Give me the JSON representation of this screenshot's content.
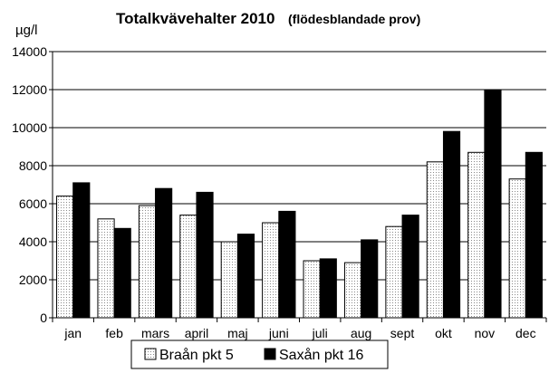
{
  "chart_data": {
    "type": "bar",
    "title": "Totalkvävehalter 2010",
    "subtitle": "(flödesblandade prov)",
    "ylabel": "µg/l",
    "xlabel": "",
    "ylim": [
      0,
      14000
    ],
    "yticks": [
      0,
      2000,
      4000,
      6000,
      8000,
      10000,
      12000,
      14000
    ],
    "grid": "horizontal",
    "legend_position": "bottom",
    "categories": [
      "jan",
      "feb",
      "mars",
      "april",
      "maj",
      "juni",
      "juli",
      "aug",
      "sept",
      "okt",
      "nov",
      "dec"
    ],
    "series": [
      {
        "name": "Braån pkt 5",
        "pattern": "dotted",
        "color": "#ffffff",
        "values": [
          6400,
          5200,
          5900,
          5400,
          4000,
          5000,
          3000,
          2900,
          4800,
          8200,
          8700,
          7300
        ]
      },
      {
        "name": "Saxån pkt 16",
        "pattern": "solid",
        "color": "#000000",
        "values": [
          7100,
          4700,
          6800,
          6600,
          4400,
          5600,
          3100,
          4100,
          5400,
          9800,
          12000,
          8700
        ]
      }
    ]
  }
}
